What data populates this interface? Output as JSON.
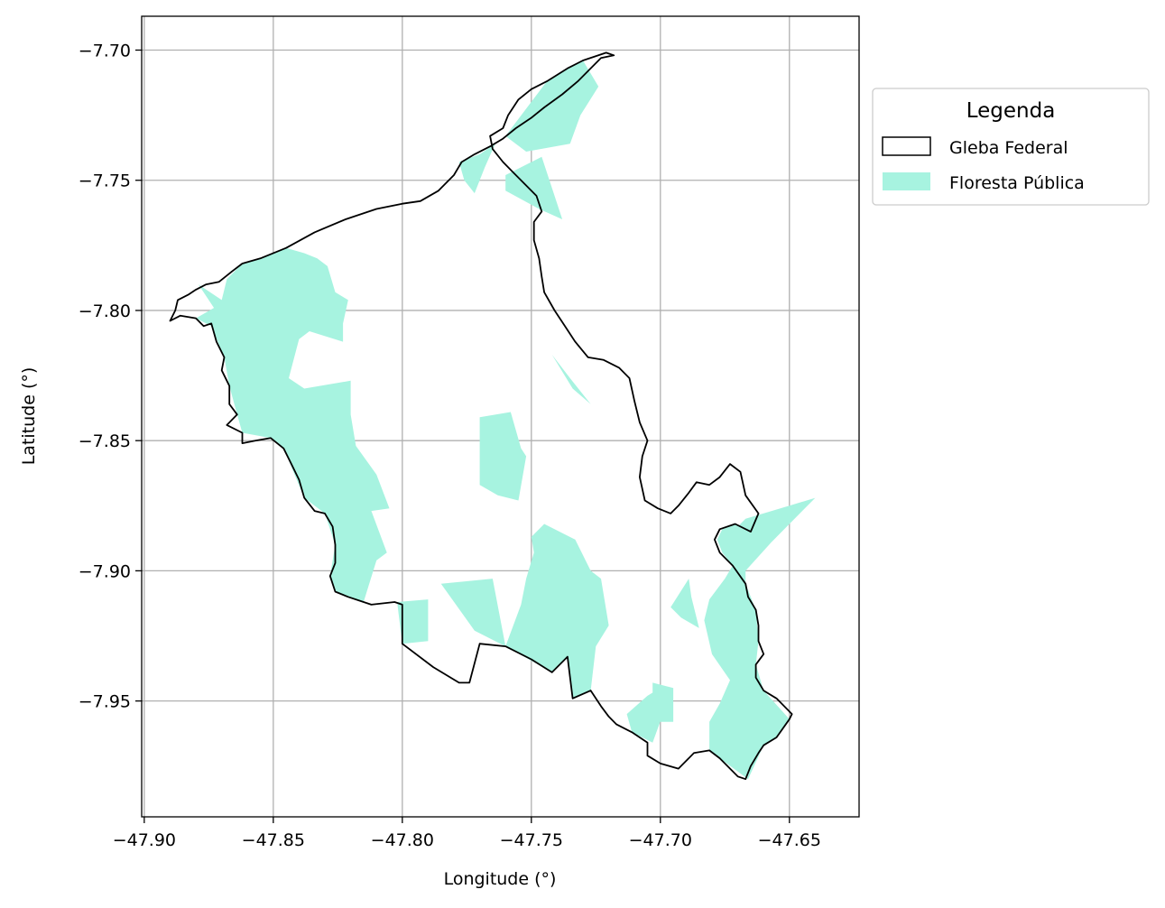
{
  "chart_data": {
    "type": "map",
    "xlabel": "Longitude (°)",
    "ylabel": "Latitude (°)",
    "xlim": [
      -47.901,
      -47.623
    ],
    "ylim": [
      -7.9945,
      -7.687
    ],
    "x_ticks": [
      {
        "value": -47.9,
        "label": "−47.90"
      },
      {
        "value": -47.85,
        "label": "−47.85"
      },
      {
        "value": -47.8,
        "label": "−47.80"
      },
      {
        "value": -47.75,
        "label": "−47.75"
      },
      {
        "value": -47.7,
        "label": "−47.70"
      },
      {
        "value": -47.65,
        "label": "−47.65"
      }
    ],
    "y_ticks": [
      {
        "value": -7.7,
        "label": "−7.70"
      },
      {
        "value": -7.75,
        "label": "−7.75"
      },
      {
        "value": -7.8,
        "label": "−7.80"
      },
      {
        "value": -7.85,
        "label": "−7.85"
      },
      {
        "value": -7.9,
        "label": "−7.90"
      },
      {
        "value": -7.95,
        "label": "−7.95"
      }
    ],
    "grid": true,
    "legend": {
      "title": "Legenda",
      "placement": "outside-right-top",
      "entries": [
        {
          "label": "Gleba Federal",
          "style": "outline",
          "color": "#000000"
        },
        {
          "label": "Floresta Pública",
          "style": "fill",
          "color": "#a7f3e0"
        }
      ]
    },
    "colors": {
      "forest": "#a7f3e0",
      "boundary": "#000000",
      "grid": "#b0b0b0"
    },
    "boundary": {
      "name": "Gleba Federal",
      "coords": [
        [
          -47.89,
          -7.804
        ],
        [
          -47.886,
          -7.802
        ],
        [
          -47.88,
          -7.803
        ],
        [
          -47.877,
          -7.806
        ],
        [
          -47.874,
          -7.805
        ],
        [
          -47.872,
          -7.812
        ],
        [
          -47.869,
          -7.818
        ],
        [
          -47.87,
          -7.823
        ],
        [
          -47.867,
          -7.829
        ],
        [
          -47.867,
          -7.836
        ],
        [
          -47.864,
          -7.84
        ],
        [
          -47.868,
          -7.844
        ],
        [
          -47.862,
          -7.847
        ],
        [
          -47.862,
          -7.851
        ],
        [
          -47.857,
          -7.85
        ],
        [
          -47.851,
          -7.849
        ],
        [
          -47.846,
          -7.853
        ],
        [
          -47.843,
          -7.859
        ],
        [
          -47.84,
          -7.865
        ],
        [
          -47.838,
          -7.872
        ],
        [
          -47.834,
          -7.877
        ],
        [
          -47.83,
          -7.878
        ],
        [
          -47.827,
          -7.883
        ],
        [
          -47.826,
          -7.89
        ],
        [
          -47.826,
          -7.897
        ],
        [
          -47.828,
          -7.902
        ],
        [
          -47.826,
          -7.908
        ],
        [
          -47.821,
          -7.91
        ],
        [
          -47.815,
          -7.912
        ],
        [
          -47.812,
          -7.913
        ],
        [
          -47.803,
          -7.912
        ],
        [
          -47.8,
          -7.913
        ],
        [
          -47.8,
          -7.928
        ],
        [
          -47.788,
          -7.937
        ],
        [
          -47.778,
          -7.943
        ],
        [
          -47.774,
          -7.943
        ],
        [
          -47.77,
          -7.928
        ],
        [
          -47.76,
          -7.929
        ],
        [
          -47.75,
          -7.934
        ],
        [
          -47.742,
          -7.939
        ],
        [
          -47.736,
          -7.933
        ],
        [
          -47.734,
          -7.949
        ],
        [
          -47.727,
          -7.946
        ],
        [
          -47.723,
          -7.952
        ],
        [
          -47.72,
          -7.956
        ],
        [
          -47.717,
          -7.959
        ],
        [
          -47.711,
          -7.962
        ],
        [
          -47.705,
          -7.966
        ],
        [
          -47.705,
          -7.971
        ],
        [
          -47.7,
          -7.974
        ],
        [
          -47.693,
          -7.976
        ],
        [
          -47.687,
          -7.97
        ],
        [
          -47.681,
          -7.969
        ],
        [
          -47.677,
          -7.972
        ],
        [
          -47.67,
          -7.979
        ],
        [
          -47.667,
          -7.98
        ],
        [
          -47.665,
          -7.975
        ],
        [
          -47.662,
          -7.97
        ],
        [
          -47.66,
          -7.967
        ],
        [
          -47.655,
          -7.964
        ],
        [
          -47.65,
          -7.957
        ],
        [
          -47.649,
          -7.955
        ],
        [
          -47.655,
          -7.949
        ],
        [
          -47.66,
          -7.946
        ],
        [
          -47.663,
          -7.941
        ],
        [
          -47.663,
          -7.936
        ],
        [
          -47.66,
          -7.932
        ],
        [
          -47.662,
          -7.927
        ],
        [
          -47.662,
          -7.921
        ],
        [
          -47.663,
          -7.915
        ],
        [
          -47.666,
          -7.91
        ],
        [
          -47.667,
          -7.905
        ],
        [
          -47.672,
          -7.898
        ],
        [
          -47.677,
          -7.893
        ],
        [
          -47.679,
          -7.888
        ],
        [
          -47.677,
          -7.884
        ],
        [
          -47.671,
          -7.882
        ],
        [
          -47.665,
          -7.885
        ],
        [
          -47.662,
          -7.878
        ],
        [
          -47.667,
          -7.871
        ],
        [
          -47.669,
          -7.862
        ],
        [
          -47.673,
          -7.859
        ],
        [
          -47.677,
          -7.864
        ],
        [
          -47.681,
          -7.867
        ],
        [
          -47.686,
          -7.866
        ],
        [
          -47.689,
          -7.87
        ],
        [
          -47.693,
          -7.875
        ],
        [
          -47.696,
          -7.878
        ],
        [
          -47.701,
          -7.876
        ],
        [
          -47.706,
          -7.873
        ],
        [
          -47.708,
          -7.864
        ],
        [
          -47.707,
          -7.856
        ],
        [
          -47.705,
          -7.85
        ],
        [
          -47.708,
          -7.843
        ],
        [
          -47.71,
          -7.835
        ],
        [
          -47.712,
          -7.826
        ],
        [
          -47.716,
          -7.822
        ],
        [
          -47.722,
          -7.819
        ],
        [
          -47.728,
          -7.818
        ],
        [
          -47.733,
          -7.812
        ],
        [
          -47.737,
          -7.806
        ],
        [
          -47.741,
          -7.8
        ],
        [
          -47.745,
          -7.793
        ],
        [
          -47.746,
          -7.787
        ],
        [
          -47.747,
          -7.78
        ],
        [
          -47.749,
          -7.773
        ],
        [
          -47.749,
          -7.766
        ],
        [
          -47.746,
          -7.762
        ],
        [
          -47.748,
          -7.756
        ],
        [
          -47.752,
          -7.752
        ],
        [
          -47.757,
          -7.747
        ],
        [
          -47.761,
          -7.743
        ],
        [
          -47.765,
          -7.738
        ],
        [
          -47.766,
          -7.733
        ],
        [
          -47.761,
          -7.73
        ],
        [
          -47.759,
          -7.725
        ],
        [
          -47.755,
          -7.719
        ],
        [
          -47.75,
          -7.715
        ],
        [
          -47.744,
          -7.712
        ],
        [
          -47.736,
          -7.707
        ],
        [
          -47.73,
          -7.704
        ],
        [
          -47.721,
          -7.701
        ],
        [
          -47.718,
          -7.702
        ],
        [
          -47.723,
          -7.703
        ],
        [
          -47.728,
          -7.708
        ],
        [
          -47.732,
          -7.712
        ],
        [
          -47.738,
          -7.717
        ],
        [
          -47.745,
          -7.722
        ],
        [
          -47.75,
          -7.726
        ],
        [
          -47.756,
          -7.73
        ],
        [
          -47.761,
          -7.734
        ],
        [
          -47.766,
          -7.737
        ],
        [
          -47.772,
          -7.74
        ],
        [
          -47.777,
          -7.743
        ],
        [
          -47.78,
          -7.748
        ],
        [
          -47.786,
          -7.754
        ],
        [
          -47.793,
          -7.758
        ],
        [
          -47.8,
          -7.759
        ],
        [
          -47.81,
          -7.761
        ],
        [
          -47.822,
          -7.765
        ],
        [
          -47.834,
          -7.77
        ],
        [
          -47.845,
          -7.776
        ],
        [
          -47.855,
          -7.78
        ],
        [
          -47.862,
          -7.782
        ],
        [
          -47.866,
          -7.785
        ],
        [
          -47.871,
          -7.789
        ],
        [
          -47.876,
          -7.79
        ],
        [
          -47.88,
          -7.792
        ],
        [
          -47.883,
          -7.794
        ],
        [
          -47.887,
          -7.796
        ],
        [
          -47.888,
          -7.8
        ],
        [
          -47.89,
          -7.804
        ]
      ]
    },
    "forest_areas": [
      [
        [
          -47.879,
          -7.79
        ],
        [
          -47.87,
          -7.796
        ],
        [
          -47.868,
          -7.788
        ],
        [
          -47.862,
          -7.782
        ],
        [
          -47.855,
          -7.78
        ],
        [
          -47.845,
          -7.776
        ],
        [
          -47.838,
          -7.778
        ],
        [
          -47.833,
          -7.78
        ],
        [
          -47.829,
          -7.783
        ],
        [
          -47.826,
          -7.793
        ],
        [
          -47.821,
          -7.796
        ],
        [
          -47.823,
          -7.805
        ],
        [
          -47.823,
          -7.812
        ],
        [
          -47.836,
          -7.808
        ],
        [
          -47.84,
          -7.811
        ],
        [
          -47.844,
          -7.826
        ],
        [
          -47.838,
          -7.83
        ],
        [
          -47.82,
          -7.827
        ],
        [
          -47.82,
          -7.84
        ],
        [
          -47.818,
          -7.852
        ],
        [
          -47.81,
          -7.863
        ],
        [
          -47.805,
          -7.876
        ],
        [
          -47.812,
          -7.877
        ],
        [
          -47.806,
          -7.893
        ],
        [
          -47.81,
          -7.896
        ],
        [
          -47.815,
          -7.912
        ],
        [
          -47.826,
          -7.908
        ],
        [
          -47.828,
          -7.902
        ],
        [
          -47.826,
          -7.89
        ],
        [
          -47.83,
          -7.878
        ],
        [
          -47.838,
          -7.872
        ],
        [
          -47.846,
          -7.853
        ],
        [
          -47.851,
          -7.849
        ],
        [
          -47.862,
          -7.847
        ],
        [
          -47.864,
          -7.84
        ],
        [
          -47.867,
          -7.829
        ],
        [
          -47.869,
          -7.818
        ],
        [
          -47.874,
          -7.806
        ],
        [
          -47.88,
          -7.803
        ],
        [
          -47.873,
          -7.799
        ]
      ],
      [
        [
          -47.778,
          -7.743
        ],
        [
          -47.77,
          -7.74
        ],
        [
          -47.764,
          -7.736
        ],
        [
          -47.768,
          -7.745
        ],
        [
          -47.772,
          -7.755
        ],
        [
          -47.776,
          -7.75
        ]
      ],
      [
        [
          -47.744,
          -7.712
        ],
        [
          -47.736,
          -7.707
        ],
        [
          -47.73,
          -7.704
        ],
        [
          -47.724,
          -7.714
        ],
        [
          -47.731,
          -7.725
        ],
        [
          -47.735,
          -7.736
        ],
        [
          -47.752,
          -7.739
        ],
        [
          -47.76,
          -7.733
        ]
      ],
      [
        [
          -47.76,
          -7.748
        ],
        [
          -47.746,
          -7.741
        ],
        [
          -47.742,
          -7.753
        ],
        [
          -47.738,
          -7.765
        ],
        [
          -47.747,
          -7.761
        ],
        [
          -47.76,
          -7.754
        ]
      ],
      [
        [
          -47.742,
          -7.817
        ],
        [
          -47.734,
          -7.83
        ],
        [
          -47.727,
          -7.836
        ],
        [
          -47.735,
          -7.826
        ]
      ],
      [
        [
          -47.77,
          -7.867
        ],
        [
          -47.77,
          -7.841
        ],
        [
          -47.758,
          -7.839
        ],
        [
          -47.754,
          -7.853
        ],
        [
          -47.752,
          -7.856
        ],
        [
          -47.755,
          -7.873
        ],
        [
          -47.763,
          -7.871
        ]
      ],
      [
        [
          -47.802,
          -7.912
        ],
        [
          -47.79,
          -7.911
        ],
        [
          -47.79,
          -7.927
        ],
        [
          -47.8,
          -7.928
        ]
      ],
      [
        [
          -47.785,
          -7.905
        ],
        [
          -47.765,
          -7.903
        ],
        [
          -47.76,
          -7.929
        ],
        [
          -47.742,
          -7.939
        ],
        [
          -47.736,
          -7.933
        ],
        [
          -47.734,
          -7.949
        ],
        [
          -47.727,
          -7.946
        ],
        [
          -47.725,
          -7.929
        ],
        [
          -47.72,
          -7.921
        ],
        [
          -47.723,
          -7.903
        ],
        [
          -47.727,
          -7.9
        ],
        [
          -47.733,
          -7.888
        ],
        [
          -47.745,
          -7.882
        ],
        [
          -47.75,
          -7.887
        ],
        [
          -47.749,
          -7.893
        ],
        [
          -47.752,
          -7.903
        ],
        [
          -47.754,
          -7.913
        ],
        [
          -47.76,
          -7.929
        ],
        [
          -47.772,
          -7.923
        ]
      ],
      [
        [
          -47.711,
          -7.962
        ],
        [
          -47.713,
          -7.955
        ],
        [
          -47.705,
          -7.948
        ],
        [
          -47.7,
          -7.945
        ],
        [
          -47.699,
          -7.955
        ],
        [
          -47.703,
          -7.966
        ]
      ],
      [
        [
          -47.703,
          -7.958
        ],
        [
          -47.695,
          -7.958
        ],
        [
          -47.695,
          -7.945
        ],
        [
          -47.703,
          -7.943
        ]
      ],
      [
        [
          -47.689,
          -7.903
        ],
        [
          -47.696,
          -7.914
        ],
        [
          -47.692,
          -7.918
        ],
        [
          -47.685,
          -7.922
        ],
        [
          -47.688,
          -7.91
        ]
      ],
      [
        [
          -47.681,
          -7.969
        ],
        [
          -47.677,
          -7.972
        ],
        [
          -47.666,
          -7.98
        ],
        [
          -47.66,
          -7.967
        ],
        [
          -47.655,
          -7.964
        ],
        [
          -47.65,
          -7.957
        ],
        [
          -47.66,
          -7.946
        ],
        [
          -47.663,
          -7.936
        ],
        [
          -47.662,
          -7.927
        ],
        [
          -47.663,
          -7.915
        ],
        [
          -47.667,
          -7.905
        ],
        [
          -47.672,
          -7.898
        ],
        [
          -47.675,
          -7.903
        ],
        [
          -47.681,
          -7.911
        ],
        [
          -47.683,
          -7.919
        ],
        [
          -47.68,
          -7.932
        ],
        [
          -47.673,
          -7.942
        ],
        [
          -47.677,
          -7.951
        ],
        [
          -47.681,
          -7.958
        ]
      ],
      [
        [
          -47.665,
          -7.885
        ],
        [
          -47.671,
          -7.882
        ],
        [
          -47.676,
          -7.884
        ],
        [
          -47.678,
          -7.888
        ],
        [
          -47.676,
          -7.893
        ],
        [
          -47.672,
          -7.898
        ],
        [
          -47.667,
          -7.905
        ],
        [
          -47.667,
          -7.9
        ],
        [
          -47.668,
          -7.893
        ]
      ],
      [
        [
          -47.675,
          -7.888
        ],
        [
          -47.667,
          -7.88
        ],
        [
          -47.65,
          -7.875
        ],
        [
          -47.64,
          -7.872
        ],
        [
          -47.657,
          -7.889
        ],
        [
          -47.667,
          -7.9
        ]
      ]
    ]
  }
}
